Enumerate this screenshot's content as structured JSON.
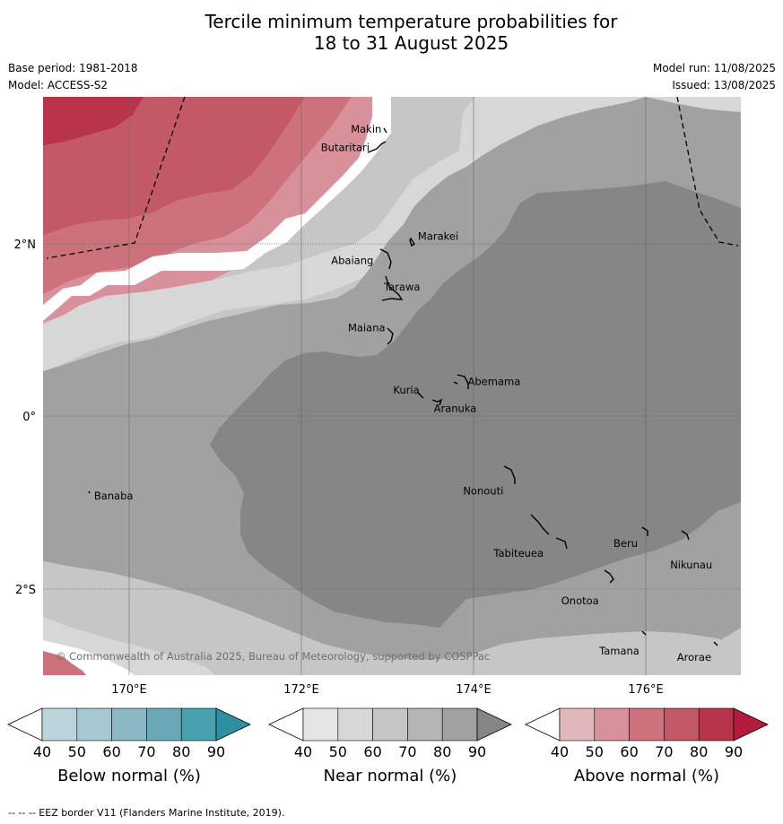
{
  "title": {
    "line1": "Tercile minimum temperature probabilities for",
    "line2": "18 to 31 August 2025"
  },
  "meta": {
    "base_period": "Base period: 1981-2018",
    "model": "Model: ACCESS-S2",
    "model_run": "Model run: 11/08/2025",
    "issued": "Issued: 13/08/2025"
  },
  "map": {
    "lat_labels": [
      "2°N",
      "0°",
      "2°S"
    ],
    "lon_labels": [
      "170°E",
      "172°E",
      "174°E",
      "176°E"
    ],
    "copyright": "© Commonwealth of Australia 2025, Bureau of Meteorology, supported by COSPPac",
    "islands": [
      {
        "name": "Makin",
        "lon": 172.95,
        "lat": 3.3
      },
      {
        "name": "Butaritari",
        "lon": 172.8,
        "lat": 3.07
      },
      {
        "name": "Marakei",
        "lon": 173.27,
        "lat": 2.0
      },
      {
        "name": "Abaiang",
        "lon": 172.93,
        "lat": 1.8
      },
      {
        "name": "Tarawa",
        "lon": 173.0,
        "lat": 1.4
      },
      {
        "name": "Maiana",
        "lon": 173.0,
        "lat": 0.92
      },
      {
        "name": "Abemama",
        "lon": 173.87,
        "lat": 0.38
      },
      {
        "name": "Kuria",
        "lon": 173.4,
        "lat": 0.22
      },
      {
        "name": "Aranuka",
        "lon": 173.6,
        "lat": 0.17
      },
      {
        "name": "Nonouti",
        "lon": 174.42,
        "lat": -0.66
      },
      {
        "name": "Banaba",
        "lon": 169.54,
        "lat": -0.86
      },
      {
        "name": "Tabiteuea",
        "lon": 174.9,
        "lat": -1.3
      },
      {
        "name": "Beru",
        "lon": 176.0,
        "lat": -1.33
      },
      {
        "name": "Nikunau",
        "lon": 176.45,
        "lat": -1.38
      },
      {
        "name": "Onotoa",
        "lon": 175.56,
        "lat": -1.85
      },
      {
        "name": "Tamana",
        "lon": 175.98,
        "lat": -2.5
      },
      {
        "name": "Arorae",
        "lon": 176.8,
        "lat": -2.64
      }
    ]
  },
  "colorbars": [
    {
      "title": "Below normal (%)",
      "ticks": [
        "40",
        "50",
        "60",
        "70",
        "80",
        "90"
      ],
      "colors": [
        "#ffffff",
        "#bdd3db",
        "#a6c9d2",
        "#8bb8c5",
        "#6aa8b7",
        "#46a0b0",
        "#2e8fa3"
      ]
    },
    {
      "title": "Near normal (%)",
      "ticks": [
        "40",
        "50",
        "60",
        "70",
        "80",
        "90"
      ],
      "colors": [
        "#ffffff",
        "#e5e5e5",
        "#d7d7d7",
        "#c6c6c6",
        "#b4b4b4",
        "#a1a1a1",
        "#868686"
      ]
    },
    {
      "title": "Above normal (%)",
      "ticks": [
        "40",
        "50",
        "60",
        "70",
        "80",
        "90"
      ],
      "colors": [
        "#ffffff",
        "#e2b6bd",
        "#d8919b",
        "#cd727d",
        "#c35866",
        "#b8344a",
        "#b31d3d"
      ]
    }
  ],
  "footnote": "--  --  -- EEZ border V11 (Flanders Marine Institute, 2019)."
}
